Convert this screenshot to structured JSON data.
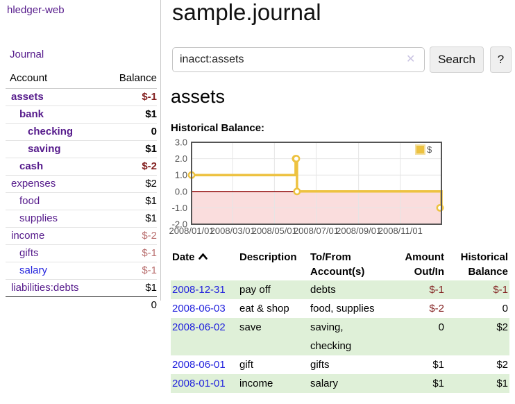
{
  "brand": "hledger-web",
  "nav": {
    "journal": "Journal"
  },
  "sidebar": {
    "headers": {
      "account": "Account",
      "balance": "Balance"
    },
    "accounts": [
      {
        "name": "assets",
        "balance": "$-1",
        "indent": 1,
        "in_account": true
      },
      {
        "name": "bank",
        "balance": "$1",
        "indent": 2,
        "in_account": true
      },
      {
        "name": "checking",
        "balance": "0",
        "indent": 3,
        "in_account": true
      },
      {
        "name": "saving",
        "balance": "$1",
        "indent": 3,
        "in_account": true
      },
      {
        "name": "cash",
        "balance": "$-2",
        "indent": 2,
        "in_account": true
      },
      {
        "name": "expenses",
        "balance": "$2",
        "indent": 1,
        "in_account": false
      },
      {
        "name": "food",
        "balance": "$1",
        "indent": 2,
        "in_account": false
      },
      {
        "name": "supplies",
        "balance": "$1",
        "indent": 2,
        "in_account": false
      },
      {
        "name": "income",
        "balance": "$-2",
        "indent": 1,
        "in_account": false
      },
      {
        "name": "gifts",
        "balance": "$-1",
        "indent": 2,
        "in_account": false
      },
      {
        "name": "salary",
        "balance": "$-1",
        "indent": 2,
        "in_account": false
      },
      {
        "name": "liabilities:debts",
        "balance": "$1",
        "indent": 1,
        "in_account": false
      }
    ],
    "total": "0"
  },
  "main": {
    "title": "sample.journal",
    "search": {
      "value": "inacct:assets",
      "clear_icon": "✕",
      "search_label": "Search",
      "help_label": "?"
    },
    "register": {
      "heading": "assets",
      "chart_title": "Historical Balance:"
    }
  },
  "chart_data": {
    "type": "line",
    "title": "Historical Balance",
    "step": true,
    "series": [
      {
        "name": "$",
        "color": "#edc240",
        "points": [
          [
            "2008-01-01",
            1
          ],
          [
            "2008-06-01",
            2
          ],
          [
            "2008-06-02",
            2
          ],
          [
            "2008-06-03",
            0
          ],
          [
            "2008-12-31",
            -1
          ]
        ]
      }
    ],
    "x_ticks": [
      "2008/01/01",
      "2008/03/01",
      "2008/05/01",
      "2008/07/01",
      "2008/09/01",
      "2008/11/01"
    ],
    "y_ticks": [
      3.0,
      2.0,
      1.0,
      0.0,
      -1.0,
      -2.0
    ],
    "xlim": [
      "2008-01-01",
      "2008-12-31"
    ],
    "ylim": [
      -2,
      3
    ],
    "grid": true,
    "legend": {
      "position": "top-right",
      "entries": [
        "$"
      ]
    },
    "negative_region_color": "#fadddd",
    "zero_line_color": "#8b0000",
    "grid_color": "#e5e5e5",
    "border_color": "#545454",
    "axis_label_color": "#545454"
  },
  "table": {
    "headers": {
      "date": "Date",
      "description": "Description",
      "accounts": "To/From Account(s)",
      "amount": "Amount Out/In",
      "balance": "Historical Balance"
    },
    "rows": [
      {
        "date": "2008-12-31",
        "description": "pay off",
        "accounts": "debts",
        "amount": "$-1",
        "balance": "$-1"
      },
      {
        "date": "2008-06-03",
        "description": "eat & shop",
        "accounts": "food, supplies",
        "amount": "$-2",
        "balance": "0"
      },
      {
        "date": "2008-06-02",
        "description": "save",
        "accounts": "saving, checking",
        "amount": "0",
        "balance": "$2"
      },
      {
        "date": "2008-06-01",
        "description": "gift",
        "accounts": "gifts",
        "amount": "$1",
        "balance": "$2"
      },
      {
        "date": "2008-01-01",
        "description": "income",
        "accounts": "salary",
        "amount": "$1",
        "balance": "$1"
      }
    ]
  },
  "colors": {
    "purple_link": "#551a8b",
    "blue_link": "#2222dd",
    "negative": "#821f1f",
    "negative_soft": "#b96f6f",
    "row_green": "#dff0d8",
    "chart_gold": "#edc240"
  }
}
